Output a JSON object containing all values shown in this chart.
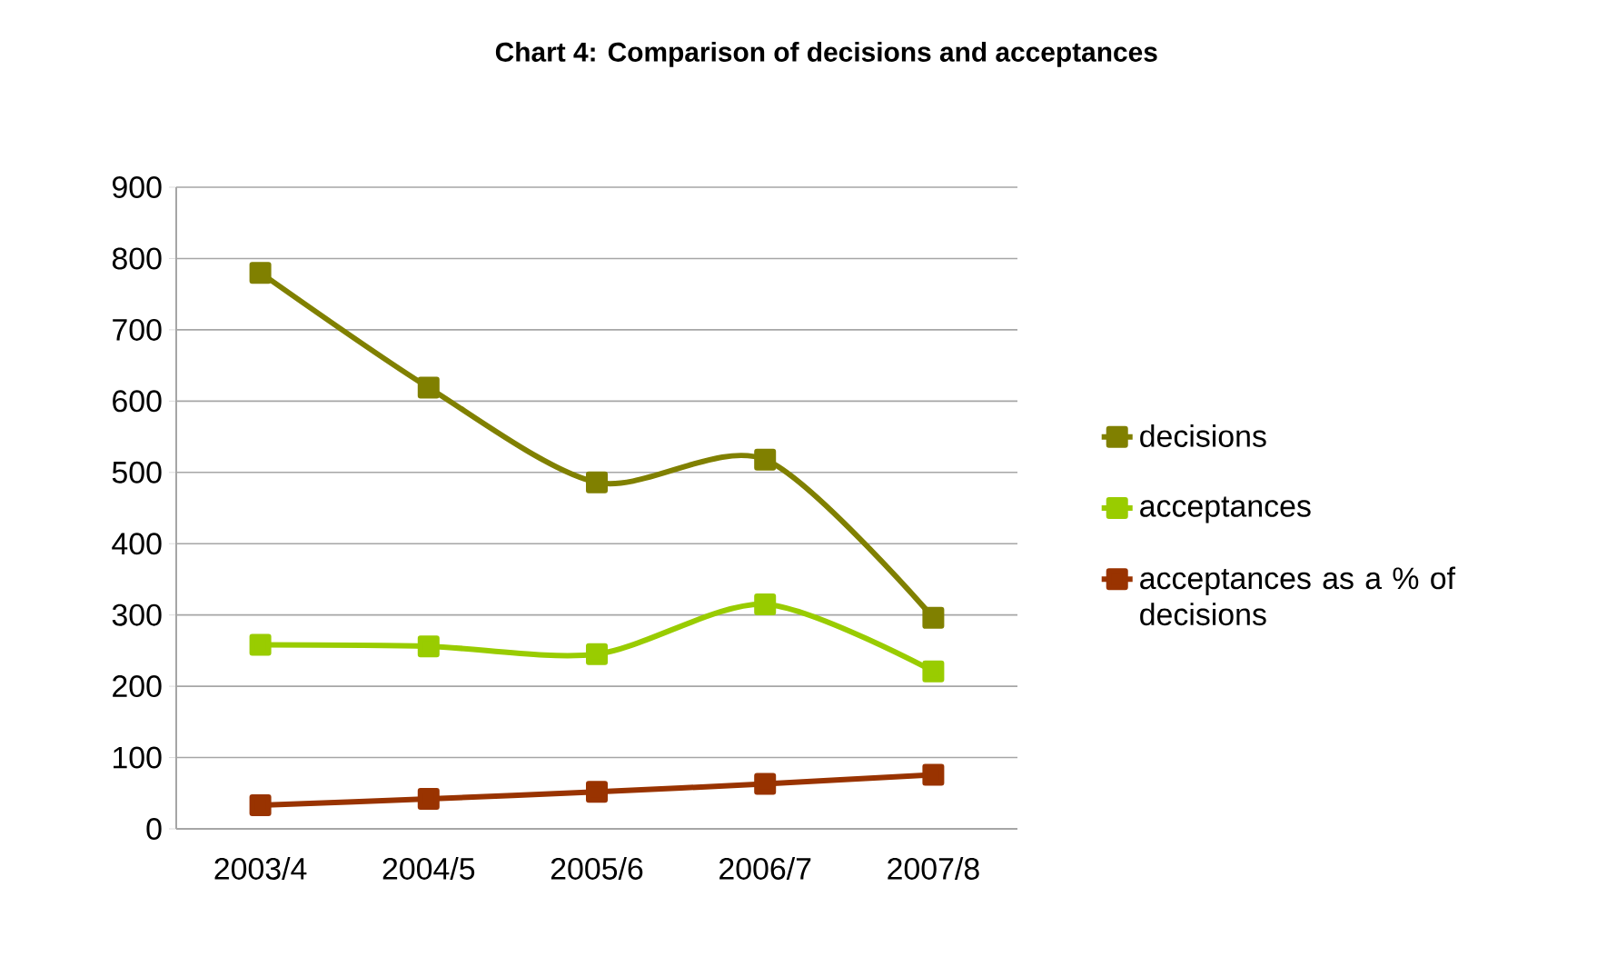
{
  "chart_data": {
    "type": "line",
    "title": "Chart 4: Comparison of decisions and acceptances",
    "categories": [
      "2003/4",
      "2004/5",
      "2005/6",
      "2006/7",
      "2007/8"
    ],
    "series": [
      {
        "name": "decisions",
        "color": "#808000",
        "values": [
          780,
          619,
          486,
          518,
          296
        ]
      },
      {
        "name": "acceptances",
        "color": "#99cc00",
        "values": [
          258,
          256,
          245,
          315,
          221
        ]
      },
      {
        "name": "acceptances as a % of decisions",
        "color": "#993300",
        "values": [
          33,
          42,
          52,
          63,
          76
        ]
      }
    ],
    "ylim": [
      0,
      900
    ],
    "yticks": [
      0,
      100,
      200,
      300,
      400,
      500,
      600,
      700,
      800,
      900
    ],
    "grid": "y",
    "legend": "right",
    "marker": "square",
    "line_style": "solid"
  }
}
